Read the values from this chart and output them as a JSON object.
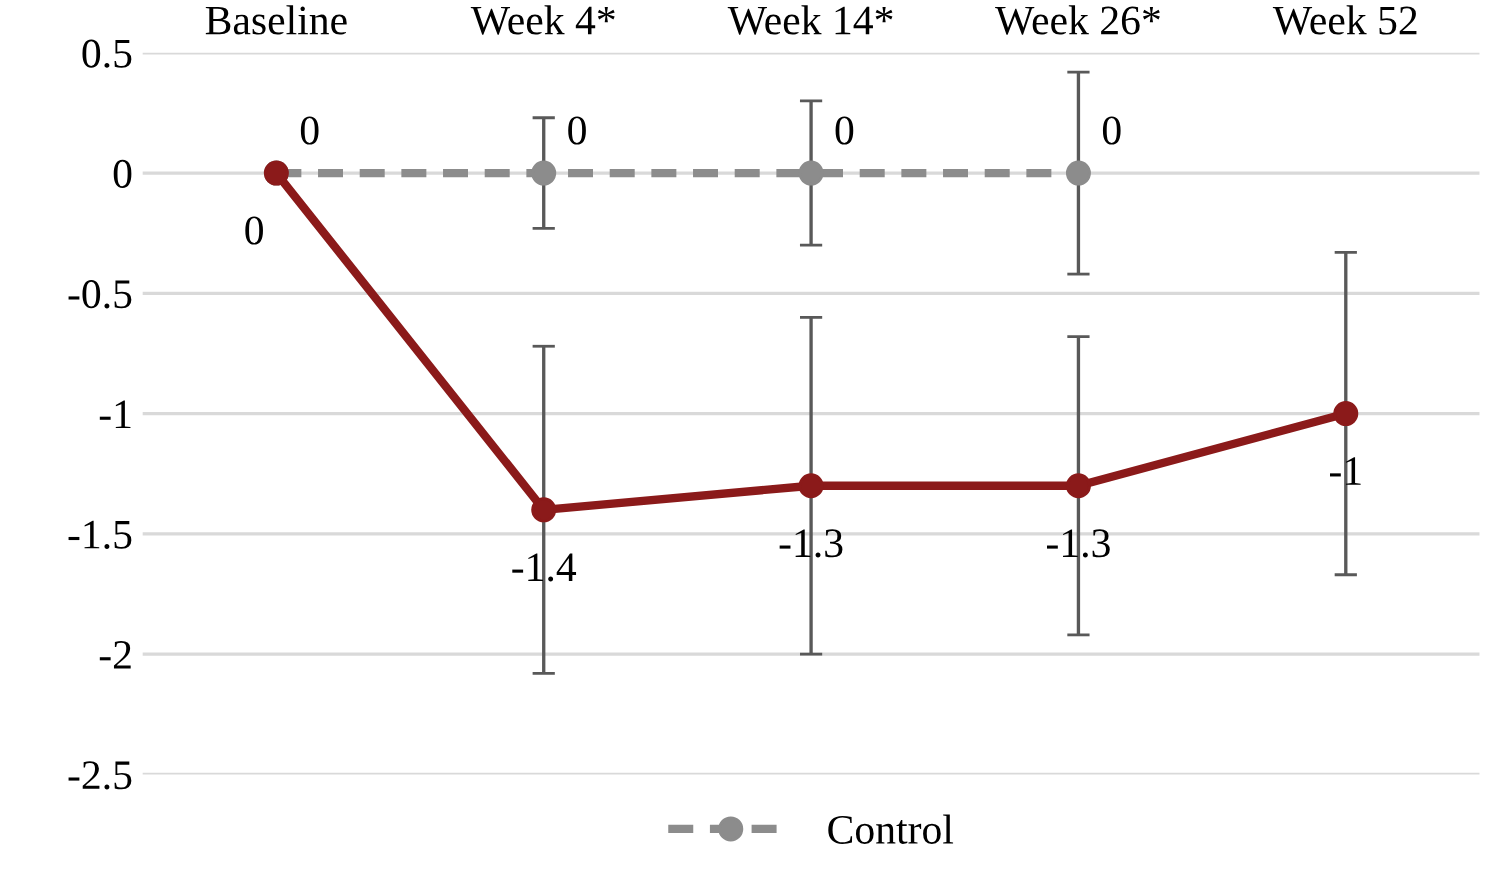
{
  "chart_data": {
    "type": "line",
    "categories": [
      "Baseline",
      "Week 4*",
      "Week 14*",
      "Week 26*",
      "Week 52"
    ],
    "series": [
      {
        "color": "#8b1a1a",
        "values": [
          0,
          -1.4,
          -1.3,
          -1.3,
          -1
        ],
        "errors": [
          null,
          0.68,
          0.7,
          0.62,
          0.67
        ],
        "line_style": "solid"
      },
      {
        "name": "Control",
        "color": "#8c8c8c",
        "values": [
          0,
          0,
          0,
          0,
          null
        ],
        "errors": [
          null,
          0.23,
          0.3,
          0.42,
          null
        ],
        "line_style": "dashed"
      }
    ],
    "ylim": [
      -2.5,
      0.5
    ],
    "yticks": [
      0.5,
      0,
      -0.5,
      -1,
      -1.5,
      -2,
      -2.5
    ],
    "grid": "y",
    "legend": "bottom",
    "marker": "circle",
    "data_labels": true
  }
}
